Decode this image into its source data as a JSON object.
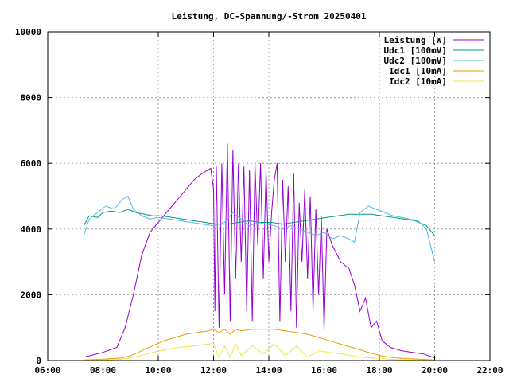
{
  "chart_data": {
    "type": "line",
    "title": "Leistung, DC-Spannung/-Strom 20250401",
    "xlabel": "",
    "ylabel": "",
    "xlim": [
      6,
      22
    ],
    "ylim": [
      0,
      10000
    ],
    "xticks": [
      6,
      8,
      10,
      12,
      14,
      16,
      18,
      20,
      22
    ],
    "xtick_labels": [
      "06:00",
      "08:00",
      "10:00",
      "12:00",
      "14:00",
      "16:00",
      "18:00",
      "20:00",
      "22:00"
    ],
    "yticks": [
      0,
      2000,
      4000,
      6000,
      8000,
      10000
    ],
    "ytick_labels": [
      "0",
      "2000",
      "4000",
      "6000",
      "8000",
      "10000"
    ],
    "grid": true,
    "legend_position": "top-right",
    "series": [
      {
        "name": "Leistung [W]",
        "color": "#9400d3",
        "points": [
          [
            7.3,
            100
          ],
          [
            8.0,
            250
          ],
          [
            8.5,
            400
          ],
          [
            8.8,
            1000
          ],
          [
            9.1,
            2000
          ],
          [
            9.4,
            3200
          ],
          [
            9.7,
            3900
          ],
          [
            10.0,
            4200
          ],
          [
            10.3,
            4500
          ],
          [
            10.6,
            4800
          ],
          [
            11.0,
            5200
          ],
          [
            11.3,
            5500
          ],
          [
            11.6,
            5700
          ],
          [
            11.9,
            5850
          ],
          [
            12.0,
            5200
          ],
          [
            12.05,
            1500
          ],
          [
            12.1,
            5900
          ],
          [
            12.2,
            1000
          ],
          [
            12.3,
            6000
          ],
          [
            12.4,
            2000
          ],
          [
            12.5,
            6600
          ],
          [
            12.6,
            1200
          ],
          [
            12.7,
            6400
          ],
          [
            12.8,
            2500
          ],
          [
            12.9,
            6000
          ],
          [
            13.0,
            3000
          ],
          [
            13.1,
            5900
          ],
          [
            13.2,
            1500
          ],
          [
            13.3,
            5800
          ],
          [
            13.4,
            1200
          ],
          [
            13.5,
            6000
          ],
          [
            13.6,
            3500
          ],
          [
            13.7,
            6000
          ],
          [
            13.8,
            2500
          ],
          [
            13.9,
            5800
          ],
          [
            14.0,
            3000
          ],
          [
            14.1,
            4500
          ],
          [
            14.2,
            5500
          ],
          [
            14.3,
            6000
          ],
          [
            14.4,
            1200
          ],
          [
            14.5,
            5500
          ],
          [
            14.6,
            3000
          ],
          [
            14.7,
            5300
          ],
          [
            14.8,
            1500
          ],
          [
            14.9,
            5700
          ],
          [
            15.0,
            1000
          ],
          [
            15.1,
            4800
          ],
          [
            15.2,
            3000
          ],
          [
            15.3,
            5200
          ],
          [
            15.4,
            2500
          ],
          [
            15.5,
            5000
          ],
          [
            15.6,
            1500
          ],
          [
            15.7,
            4600
          ],
          [
            15.8,
            2000
          ],
          [
            15.9,
            4400
          ],
          [
            16.0,
            900
          ],
          [
            16.1,
            4000
          ],
          [
            16.3,
            3500
          ],
          [
            16.6,
            3000
          ],
          [
            16.9,
            2800
          ],
          [
            17.1,
            2300
          ],
          [
            17.3,
            1500
          ],
          [
            17.5,
            1900
          ],
          [
            17.7,
            1000
          ],
          [
            17.9,
            1200
          ],
          [
            18.1,
            600
          ],
          [
            18.4,
            400
          ],
          [
            18.8,
            300
          ],
          [
            19.2,
            250
          ],
          [
            19.6,
            200
          ],
          [
            20.0,
            80
          ]
        ]
      },
      {
        "name": "Udc1 [100mV]",
        "color": "#009e73",
        "points": [
          [
            7.3,
            4100
          ],
          [
            7.5,
            4400
          ],
          [
            7.8,
            4350
          ],
          [
            8.0,
            4500
          ],
          [
            8.3,
            4550
          ],
          [
            8.6,
            4500
          ],
          [
            8.9,
            4600
          ],
          [
            9.2,
            4500
          ],
          [
            9.5,
            4450
          ],
          [
            9.8,
            4400
          ],
          [
            10.1,
            4400
          ],
          [
            10.5,
            4350
          ],
          [
            10.9,
            4300
          ],
          [
            11.3,
            4250
          ],
          [
            11.7,
            4200
          ],
          [
            12.1,
            4150
          ],
          [
            12.5,
            4150
          ],
          [
            12.9,
            4200
          ],
          [
            13.3,
            4250
          ],
          [
            13.7,
            4200
          ],
          [
            14.1,
            4200
          ],
          [
            14.5,
            4150
          ],
          [
            14.9,
            4200
          ],
          [
            15.3,
            4250
          ],
          [
            15.7,
            4300
          ],
          [
            16.1,
            4350
          ],
          [
            16.5,
            4400
          ],
          [
            16.9,
            4450
          ],
          [
            17.3,
            4450
          ],
          [
            17.7,
            4450
          ],
          [
            18.1,
            4400
          ],
          [
            18.5,
            4350
          ],
          [
            18.9,
            4300
          ],
          [
            19.3,
            4250
          ],
          [
            19.7,
            4100
          ],
          [
            20.0,
            3800
          ]
        ]
      },
      {
        "name": "Udc2 [100mV]",
        "color": "#56b4e9",
        "points": [
          [
            7.3,
            3800
          ],
          [
            7.5,
            4300
          ],
          [
            7.8,
            4500
          ],
          [
            8.1,
            4700
          ],
          [
            8.4,
            4600
          ],
          [
            8.7,
            4900
          ],
          [
            8.9,
            5000
          ],
          [
            9.1,
            4600
          ],
          [
            9.4,
            4400
          ],
          [
            9.7,
            4300
          ],
          [
            10.0,
            4350
          ],
          [
            10.4,
            4300
          ],
          [
            10.8,
            4250
          ],
          [
            11.2,
            4200
          ],
          [
            11.6,
            4150
          ],
          [
            12.0,
            4100
          ],
          [
            12.4,
            4200
          ],
          [
            12.7,
            4500
          ],
          [
            13.0,
            4300
          ],
          [
            13.3,
            4100
          ],
          [
            13.6,
            4200
          ],
          [
            13.9,
            4150
          ],
          [
            14.2,
            4100
          ],
          [
            14.5,
            4000
          ],
          [
            14.8,
            4100
          ],
          [
            15.1,
            4000
          ],
          [
            15.4,
            3900
          ],
          [
            15.7,
            3800
          ],
          [
            16.0,
            3900
          ],
          [
            16.3,
            3700
          ],
          [
            16.6,
            3800
          ],
          [
            16.9,
            3700
          ],
          [
            17.1,
            3600
          ],
          [
            17.3,
            4500
          ],
          [
            17.6,
            4700
          ],
          [
            17.9,
            4600
          ],
          [
            18.2,
            4500
          ],
          [
            18.5,
            4400
          ],
          [
            18.8,
            4350
          ],
          [
            19.1,
            4300
          ],
          [
            19.4,
            4250
          ],
          [
            19.7,
            4000
          ],
          [
            20.0,
            3000
          ]
        ]
      },
      {
        "name": "Idc1 [10mA]",
        "color": "#e69f00",
        "points": [
          [
            7.3,
            20
          ],
          [
            8.0,
            40
          ],
          [
            8.7,
            80
          ],
          [
            9.0,
            150
          ],
          [
            9.4,
            300
          ],
          [
            9.8,
            450
          ],
          [
            10.2,
            600
          ],
          [
            10.6,
            700
          ],
          [
            11.0,
            800
          ],
          [
            11.4,
            850
          ],
          [
            11.8,
            900
          ],
          [
            12.0,
            950
          ],
          [
            12.2,
            850
          ],
          [
            12.4,
            950
          ],
          [
            12.6,
            800
          ],
          [
            12.8,
            950
          ],
          [
            13.0,
            900
          ],
          [
            13.4,
            950
          ],
          [
            13.8,
            950
          ],
          [
            14.2,
            950
          ],
          [
            14.6,
            900
          ],
          [
            15.0,
            850
          ],
          [
            15.4,
            800
          ],
          [
            15.8,
            700
          ],
          [
            16.2,
            600
          ],
          [
            16.6,
            500
          ],
          [
            17.0,
            400
          ],
          [
            17.4,
            300
          ],
          [
            17.8,
            200
          ],
          [
            18.2,
            120
          ],
          [
            18.6,
            80
          ],
          [
            19.2,
            50
          ],
          [
            20.0,
            20
          ]
        ]
      },
      {
        "name": "Idc2 [10mA]",
        "color": "#f0e442",
        "points": [
          [
            7.3,
            10
          ],
          [
            8.0,
            20
          ],
          [
            8.7,
            40
          ],
          [
            9.0,
            80
          ],
          [
            9.4,
            150
          ],
          [
            9.8,
            250
          ],
          [
            10.2,
            320
          ],
          [
            10.6,
            380
          ],
          [
            11.0,
            420
          ],
          [
            11.4,
            460
          ],
          [
            11.8,
            500
          ],
          [
            12.0,
            520
          ],
          [
            12.2,
            100
          ],
          [
            12.4,
            450
          ],
          [
            12.6,
            100
          ],
          [
            12.8,
            500
          ],
          [
            13.0,
            150
          ],
          [
            13.4,
            450
          ],
          [
            13.8,
            200
          ],
          [
            14.2,
            500
          ],
          [
            14.6,
            150
          ],
          [
            15.0,
            450
          ],
          [
            15.4,
            100
          ],
          [
            15.8,
            300
          ],
          [
            16.2,
            250
          ],
          [
            16.6,
            200
          ],
          [
            17.0,
            150
          ],
          [
            17.4,
            100
          ],
          [
            17.8,
            80
          ],
          [
            18.2,
            50
          ],
          [
            18.6,
            30
          ],
          [
            19.2,
            20
          ],
          [
            20.0,
            10
          ]
        ]
      }
    ]
  }
}
